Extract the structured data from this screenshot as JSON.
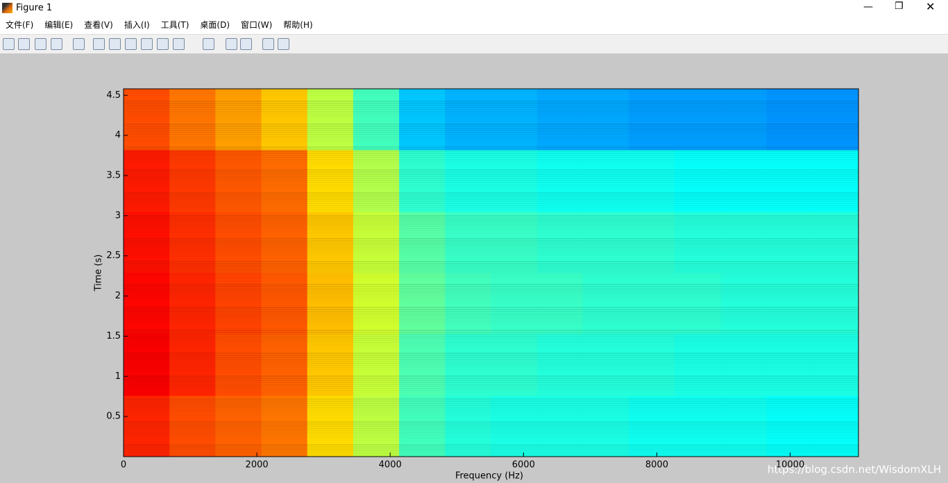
{
  "window": {
    "title": "Figure 1",
    "menu": [
      "文件(F)",
      "编辑(E)",
      "查看(V)",
      "插入(I)",
      "工具(T)",
      "桌面(D)",
      "窗口(W)",
      "帮助(H)"
    ],
    "watermark": "https://blog.csdn.net/WisdomXLH"
  },
  "chart_data": {
    "type": "spectrogram",
    "xlabel": "Frequency (Hz)",
    "ylabel": "Time (s)",
    "colormap": "jet",
    "clim": [
      0,
      1
    ],
    "xlim": [
      0,
      11025
    ],
    "ylim": [
      0,
      4.58
    ],
    "xticks": [
      0,
      2000,
      4000,
      6000,
      8000,
      10000
    ],
    "yticks": [
      0.5,
      1,
      1.5,
      2,
      2.5,
      3,
      3.5,
      4,
      4.5
    ],
    "x_edges": [
      0,
      689,
      1378,
      2067,
      2756,
      3445,
      4134,
      4823,
      5512,
      6202,
      6891,
      7580,
      8269,
      8958,
      9647,
      10336,
      11025
    ],
    "y_edges": [
      0,
      0.76,
      1.53,
      2.29,
      3.05,
      3.82,
      4.58
    ],
    "values": [
      [
        0.84,
        0.8,
        0.78,
        0.76,
        0.66,
        0.56,
        0.44,
        0.41,
        0.4,
        0.4,
        0.4,
        0.39,
        0.39,
        0.39,
        0.38,
        0.38
      ],
      [
        0.88,
        0.84,
        0.8,
        0.78,
        0.68,
        0.57,
        0.45,
        0.42,
        0.42,
        0.41,
        0.41,
        0.41,
        0.4,
        0.4,
        0.4,
        0.4
      ],
      [
        0.87,
        0.84,
        0.81,
        0.79,
        0.69,
        0.58,
        0.47,
        0.44,
        0.43,
        0.43,
        0.42,
        0.42,
        0.42,
        0.41,
        0.41,
        0.41
      ],
      [
        0.86,
        0.83,
        0.8,
        0.78,
        0.68,
        0.57,
        0.46,
        0.43,
        0.43,
        0.42,
        0.42,
        0.42,
        0.41,
        0.41,
        0.41,
        0.41
      ],
      [
        0.85,
        0.82,
        0.79,
        0.77,
        0.66,
        0.55,
        0.42,
        0.4,
        0.4,
        0.39,
        0.39,
        0.39,
        0.38,
        0.38,
        0.38,
        0.38
      ],
      [
        0.8,
        0.76,
        0.72,
        0.68,
        0.56,
        0.44,
        0.32,
        0.3,
        0.3,
        0.29,
        0.29,
        0.28,
        0.28,
        0.28,
        0.27,
        0.27
      ]
    ]
  }
}
